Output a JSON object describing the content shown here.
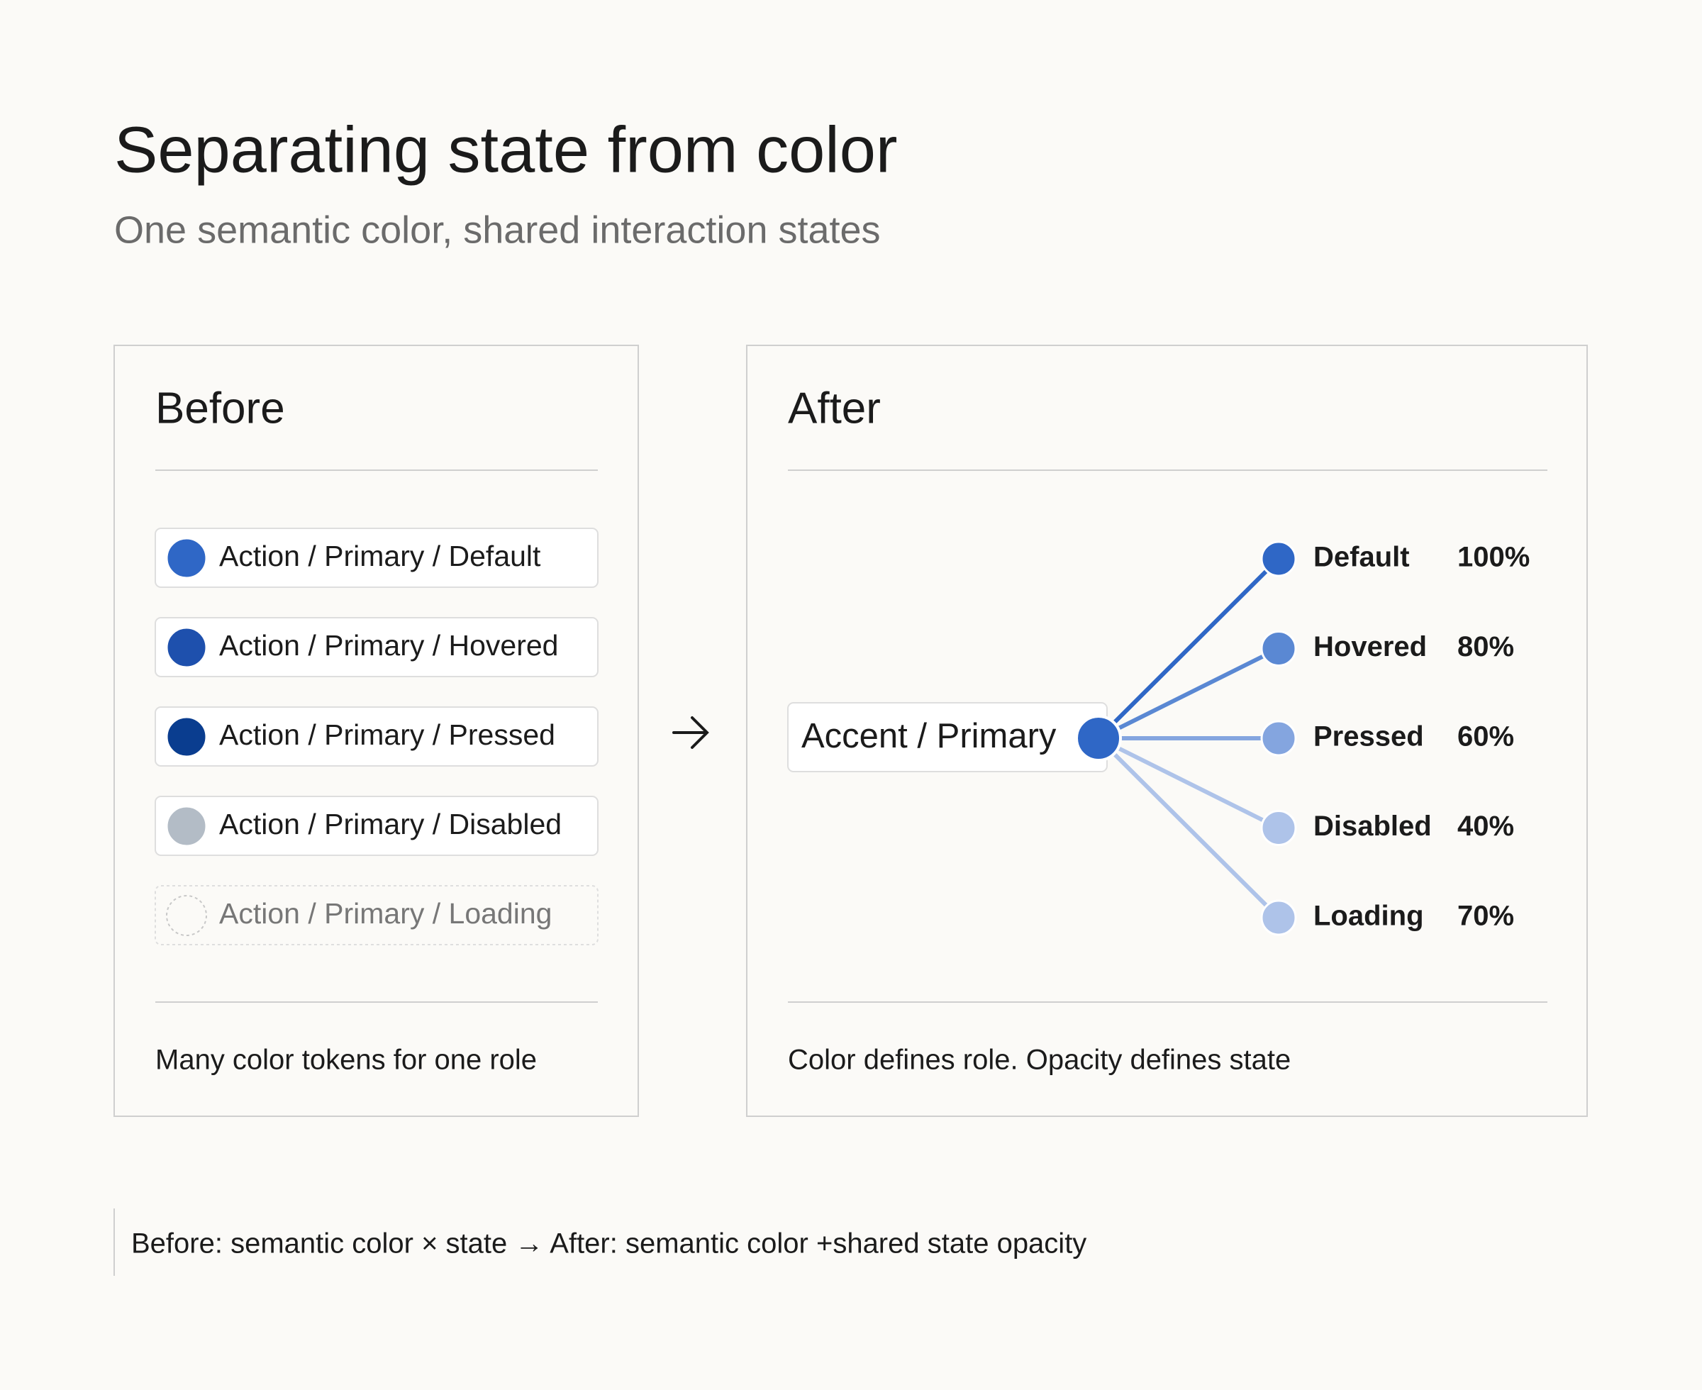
{
  "header": {
    "title": "Separating state from color",
    "subtitle": "One semantic color, shared interaction states"
  },
  "before": {
    "heading": "Before",
    "tokens": [
      {
        "label": "Action / Primary / Default",
        "color": "#2f67c6"
      },
      {
        "label": "Action / Primary / Hovered",
        "color": "#1e50ad"
      },
      {
        "label": "Action / Primary / Pressed",
        "color": "#0a3d8f"
      },
      {
        "label": "Action / Primary / Disabled",
        "color": "#b3bcc6"
      },
      {
        "label": "Action / Primary / Loading",
        "dashed": true
      }
    ],
    "caption": "Many color tokens for one role"
  },
  "after": {
    "heading": "After",
    "source": {
      "label": "Accent / Primary",
      "color": "#2f67c6"
    },
    "states": [
      {
        "name": "Default",
        "opacity": "100%",
        "color": "#2f67c6"
      },
      {
        "name": "Hovered",
        "opacity": "80%",
        "color": "#5a88d3"
      },
      {
        "name": "Pressed",
        "opacity": "60%",
        "color": "#84a5df"
      },
      {
        "name": "Disabled",
        "opacity": "40%",
        "color": "#aec3e9"
      },
      {
        "name": "Loading",
        "opacity": "70%",
        "color": "#aec3e9"
      }
    ],
    "caption": "Color defines role. Opacity defines state"
  },
  "footer": {
    "note": "Before: semantic color × state → After: semantic color +shared state opacity"
  }
}
